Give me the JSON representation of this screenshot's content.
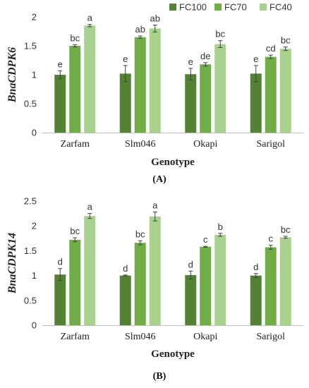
{
  "legend": [
    {
      "name": "FC100",
      "color": "#548235"
    },
    {
      "name": "FC70",
      "color": "#70ad47"
    },
    {
      "name": "FC40",
      "color": "#a9d18e"
    }
  ],
  "chart_data": [
    {
      "type": "bar",
      "panel_label": "(A)",
      "ylabel": "BnaCDPK6",
      "xlabel": "Genotype",
      "categories": [
        "Zarfam",
        "Slm046",
        "Okapi",
        "Sarigol"
      ],
      "ylim": [
        0,
        2
      ],
      "yticks": [
        0,
        0.5,
        1,
        1.5,
        2
      ],
      "ytick_labels": [
        "0",
        "0.5",
        "1",
        "1.5",
        "2"
      ],
      "grid": false,
      "legend_position": "top-right",
      "series": [
        {
          "name": "FC100",
          "color": "#548235",
          "values": [
            1.0,
            1.02,
            1.01,
            1.02
          ],
          "errors": [
            0.07,
            0.14,
            0.1,
            0.14
          ],
          "labels": [
            "e",
            "e",
            "e",
            "e"
          ]
        },
        {
          "name": "FC70",
          "color": "#70ad47",
          "values": [
            1.5,
            1.65,
            1.18,
            1.31
          ],
          "errors": [
            0.02,
            0.02,
            0.03,
            0.03
          ],
          "labels": [
            "bc",
            "ab",
            "de",
            "cd"
          ]
        },
        {
          "name": "FC40",
          "color": "#a9d18e",
          "values": [
            1.85,
            1.8,
            1.53,
            1.45
          ],
          "errors": [
            0.02,
            0.06,
            0.06,
            0.03
          ],
          "labels": [
            "a",
            "ab",
            "bc",
            "bc"
          ]
        }
      ]
    },
    {
      "type": "bar",
      "panel_label": "(B)",
      "ylabel": "BnaCDPK14",
      "xlabel": "Genotype",
      "categories": [
        "Zarfam",
        "Slm046",
        "Okapi",
        "Sarigol"
      ],
      "ylim": [
        0,
        2.5
      ],
      "yticks": [
        0,
        0.5,
        1,
        1.5,
        2,
        2.5
      ],
      "ytick_labels": [
        "0",
        "0.5",
        "1",
        "1.5",
        "2",
        "2.5"
      ],
      "grid": false,
      "series": [
        {
          "name": "FC100",
          "color": "#548235",
          "values": [
            1.02,
            1.0,
            1.01,
            1.0
          ],
          "errors": [
            0.12,
            0.01,
            0.08,
            0.04
          ],
          "labels": [
            "d",
            "d",
            "d",
            "d"
          ]
        },
        {
          "name": "FC70",
          "color": "#70ad47",
          "values": [
            1.72,
            1.66,
            1.58,
            1.57
          ],
          "errors": [
            0.04,
            0.04,
            0.01,
            0.04
          ],
          "labels": [
            "bc",
            "bc",
            "c",
            "c"
          ]
        },
        {
          "name": "FC40",
          "color": "#a9d18e",
          "values": [
            2.2,
            2.19,
            1.82,
            1.77
          ],
          "errors": [
            0.05,
            0.09,
            0.03,
            0.02
          ],
          "labels": [
            "a",
            "a",
            "b",
            "bc"
          ]
        }
      ]
    }
  ]
}
